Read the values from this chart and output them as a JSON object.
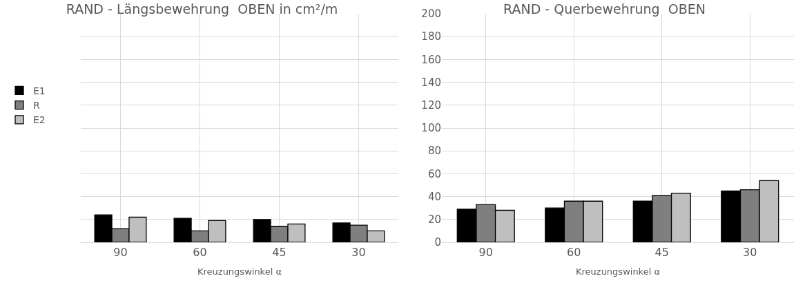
{
  "chart_data": [
    {
      "type": "bar",
      "title": "RAND - Längsbewehrung  OBEN in cm²/m",
      "xlabel": "Kreuzungswinkel α",
      "categories": [
        "90",
        "60",
        "45",
        "30"
      ],
      "series": [
        {
          "name": "E1",
          "color": "#000000",
          "values": [
            24,
            21,
            20,
            17
          ]
        },
        {
          "name": "R",
          "color": "#7f7f7f",
          "values": [
            12,
            10,
            14,
            15
          ]
        },
        {
          "name": "E2",
          "color": "#bfbfbf",
          "values": [
            22,
            19,
            16,
            10
          ]
        }
      ],
      "ylim": [
        0,
        200
      ],
      "yticks": [
        0,
        20,
        40,
        60,
        80,
        100,
        120,
        140,
        160,
        180,
        200
      ],
      "tick_labels": "x",
      "grid": true,
      "legend": "left"
    },
    {
      "type": "bar",
      "title": "RAND - Querbewehrung  OBEN",
      "xlabel": "Kreuzungswinkel α",
      "categories": [
        "90",
        "60",
        "45",
        "30"
      ],
      "series": [
        {
          "color": "#000000",
          "values": [
            29,
            30,
            36,
            45
          ]
        },
        {
          "color": "#7f7f7f",
          "values": [
            33,
            36,
            41,
            46
          ]
        },
        {
          "color": "#bfbfbf",
          "values": [
            28,
            36,
            43,
            54
          ]
        }
      ],
      "ylim": [
        0,
        200
      ],
      "yticks": [
        0,
        20,
        40,
        60,
        80,
        100,
        120,
        140,
        160,
        180,
        200
      ],
      "grid": true
    }
  ]
}
